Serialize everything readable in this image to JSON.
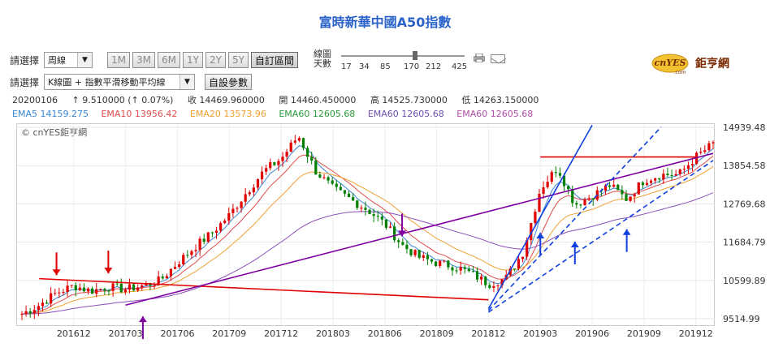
{
  "page": {
    "title": "富時新華中國A50指數"
  },
  "controls": {
    "select_label_1": "請選擇",
    "period_select": "周線",
    "range_buttons": [
      "1M",
      "3M",
      "6M",
      "1Y",
      "2Y",
      "5Y"
    ],
    "custom_range": "自訂區間",
    "line_days_label_1": "線圖",
    "line_days_label_2": "天數",
    "day_options": [
      "17",
      "34",
      "85",
      "170",
      "212",
      "425"
    ],
    "select_label_2": "請選擇",
    "indicator_select": "K線圖 + 指數平滑移動平均線",
    "custom_params": "自設參數",
    "logo_text": "cnYES",
    "logo_sub": ".com",
    "logo_cn": "鉅亨網"
  },
  "quote": {
    "date": "20200106",
    "change": "↑ 9.510000 (↑ 0.07%)",
    "close": "收 14469.960000",
    "open": "開 14460.450000",
    "high": "高 14525.730000",
    "low": "低 14263.150000"
  },
  "ema": [
    {
      "text": "EMA5 14159.275",
      "color": "#3a86d4"
    },
    {
      "text": "EMA10 13956.42",
      "color": "#e14b4b"
    },
    {
      "text": "EMA20 13573.96",
      "color": "#f0a030"
    },
    {
      "text": "EMA60 12605.68",
      "color": "#2a9a3a"
    },
    {
      "text": "EMA60 12605.68",
      "color": "#6a4fb0"
    },
    {
      "text": "EMA60 12605.68",
      "color": "#b04fa8"
    }
  ],
  "watermark": "© cnYES鉅亨網",
  "chart_data": {
    "type": "candlestick",
    "x_tick_labels": [
      "201612",
      "201703",
      "201706",
      "201709",
      "201712",
      "201803",
      "201806",
      "201809",
      "201812",
      "201903",
      "201906",
      "201909",
      "201912"
    ],
    "y_tick_labels": [
      "14939.48",
      "13854.58",
      "12769.68",
      "11684.79",
      "10599.89",
      "9514.99"
    ],
    "ylim": [
      9514.99,
      14939.48
    ],
    "grid": true,
    "close_path": [
      [
        "2016-09",
        9650
      ],
      [
        "2016-10",
        9900
      ],
      [
        "2016-11",
        10250
      ],
      [
        "2016-12",
        10450
      ],
      [
        "2017-01",
        10300
      ],
      [
        "2017-02",
        10420
      ],
      [
        "2017-03",
        10350
      ],
      [
        "2017-04",
        10450
      ],
      [
        "2017-05",
        10600
      ],
      [
        "2017-06",
        11100
      ],
      [
        "2017-07",
        11550
      ],
      [
        "2017-08",
        11950
      ],
      [
        "2017-09",
        12450
      ],
      [
        "2017-10",
        13100
      ],
      [
        "2017-11",
        13700
      ],
      [
        "2017-12",
        14050
      ],
      [
        "2018-01",
        14700
      ],
      [
        "2018-02",
        13700
      ],
      [
        "2018-03",
        13200
      ],
      [
        "2018-04",
        12900
      ],
      [
        "2018-05",
        12600
      ],
      [
        "2018-06",
        12200
      ],
      [
        "2018-07",
        11600
      ],
      [
        "2018-08",
        11250
      ],
      [
        "2018-09",
        11100
      ],
      [
        "2018-10",
        11000
      ],
      [
        "2018-11",
        10800
      ],
      [
        "2018-12",
        10500
      ],
      [
        "2019-01",
        10650
      ],
      [
        "2019-02",
        11400
      ],
      [
        "2019-03",
        13200
      ],
      [
        "2019-04",
        13800
      ],
      [
        "2019-05",
        12750
      ],
      [
        "2019-06",
        13000
      ],
      [
        "2019-07",
        13300
      ],
      [
        "2019-08",
        12900
      ],
      [
        "2019-09",
        13450
      ],
      [
        "2019-10",
        13600
      ],
      [
        "2019-11",
        13600
      ],
      [
        "2019-12",
        14100
      ],
      [
        "2020-01",
        14470
      ]
    ],
    "ema_colors": [
      "#3a86d4",
      "#e14b4b",
      "#f0a030",
      "#8a4fb8"
    ],
    "annotation_colors": {
      "red": "#e00000",
      "purple": "#8000a0",
      "blue": "#1040e0"
    }
  }
}
